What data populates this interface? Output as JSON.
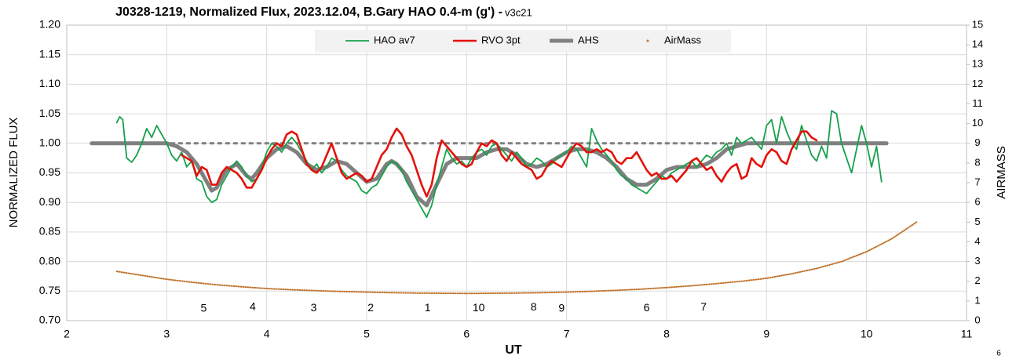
{
  "chart_data": {
    "type": "line",
    "title": "J0328-1219, Normalized Flux, 2023.12.04, B.Gary HAO 0.4-m (g') - ",
    "subtitle": "v3c21",
    "x_label": "UT",
    "y_label": "NORMALIZED FLUX",
    "y2_label": "AIRMASS",
    "page_note": "6",
    "grid": true,
    "xlim": [
      2,
      11
    ],
    "xticks": [
      2,
      3,
      4,
      5,
      6,
      7,
      8,
      9,
      10,
      11
    ],
    "ylim": [
      0.7,
      1.2
    ],
    "yticks": [
      {
        "value": 0.7,
        "label": "0.70"
      },
      0.75,
      {
        "value": 0.8,
        "label": "0.80"
      },
      0.85,
      {
        "value": 0.9,
        "label": "0.90"
      },
      0.95,
      {
        "value": 1.0,
        "label": "1.00"
      },
      1.05,
      {
        "value": 1.1,
        "label": "1.10"
      },
      1.15,
      {
        "value": 1.2,
        "label": "1.20"
      }
    ],
    "y2lim": [
      0,
      15
    ],
    "y2ticks": [
      0,
      1,
      2,
      3,
      4,
      5,
      6,
      7,
      8,
      9,
      10,
      11,
      12,
      13,
      14,
      15
    ],
    "reference_line": {
      "x": [
        2.25,
        10.2
      ],
      "y": 1.0,
      "color": "#808080",
      "dashed": true
    },
    "series": [
      {
        "name": "HAO av7",
        "color": "#16a04a",
        "line_width": 1.8,
        "x": [
          2.5,
          2.53,
          2.56,
          2.6,
          2.65,
          2.7,
          2.75,
          2.8,
          2.85,
          2.9,
          2.95,
          3.0,
          3.05,
          3.1,
          3.15,
          3.2,
          3.25,
          3.3,
          3.35,
          3.4,
          3.45,
          3.5,
          3.55,
          3.6,
          3.65,
          3.7,
          3.75,
          3.8,
          3.85,
          3.9,
          3.95,
          4.0,
          4.05,
          4.1,
          4.15,
          4.2,
          4.25,
          4.3,
          4.35,
          4.4,
          4.45,
          4.5,
          4.55,
          4.6,
          4.65,
          4.7,
          4.75,
          4.8,
          4.85,
          4.9,
          4.95,
          5.0,
          5.05,
          5.1,
          5.15,
          5.2,
          5.25,
          5.3,
          5.35,
          5.4,
          5.45,
          5.5,
          5.55,
          5.6,
          5.65,
          5.7,
          5.75,
          5.8,
          5.85,
          5.9,
          5.95,
          6.0,
          6.05,
          6.1,
          6.15,
          6.2,
          6.25,
          6.3,
          6.35,
          6.4,
          6.45,
          6.5,
          6.55,
          6.6,
          6.65,
          6.7,
          6.75,
          6.8,
          6.85,
          6.9,
          6.95,
          7.0,
          7.05,
          7.1,
          7.15,
          7.2,
          7.25,
          7.3,
          7.35,
          7.4,
          7.45,
          7.5,
          7.55,
          7.6,
          7.65,
          7.7,
          7.75,
          7.8,
          7.85,
          7.9,
          7.95,
          8.0,
          8.05,
          8.1,
          8.15,
          8.2,
          8.25,
          8.3,
          8.35,
          8.4,
          8.45,
          8.5,
          8.55,
          8.6,
          8.65,
          8.7,
          8.75,
          8.8,
          8.85,
          8.9,
          8.95,
          9.0,
          9.05,
          9.1,
          9.15,
          9.2,
          9.25,
          9.3,
          9.35,
          9.4,
          9.45,
          9.5,
          9.55,
          9.6,
          9.65,
          9.7,
          9.75,
          9.8,
          9.85,
          9.9,
          9.95,
          10.0,
          10.05,
          10.1,
          10.15
        ],
        "values": [
          1.035,
          1.045,
          1.04,
          0.975,
          0.968,
          0.98,
          1.0,
          1.025,
          1.01,
          1.03,
          1.015,
          1.0,
          0.98,
          0.97,
          0.985,
          0.96,
          0.97,
          0.94,
          0.935,
          0.91,
          0.9,
          0.905,
          0.93,
          0.945,
          0.96,
          0.97,
          0.96,
          0.945,
          0.935,
          0.94,
          0.96,
          0.985,
          1.0,
          0.995,
          0.985,
          1.0,
          1.01,
          1.0,
          0.985,
          0.97,
          0.955,
          0.965,
          0.95,
          0.96,
          0.975,
          0.97,
          0.955,
          0.945,
          0.94,
          0.935,
          0.92,
          0.915,
          0.925,
          0.93,
          0.945,
          0.96,
          0.97,
          0.965,
          0.955,
          0.935,
          0.92,
          0.905,
          0.89,
          0.875,
          0.895,
          0.93,
          0.96,
          0.99,
          0.975,
          0.965,
          0.97,
          0.96,
          0.975,
          0.985,
          0.99,
          0.98,
          0.995,
          1.0,
          0.99,
          0.98,
          0.97,
          0.985,
          0.975,
          0.96,
          0.965,
          0.975,
          0.97,
          0.96,
          0.965,
          0.975,
          0.98,
          0.985,
          0.995,
          0.99,
          0.975,
          0.96,
          1.025,
          1.005,
          0.99,
          0.98,
          0.97,
          0.955,
          0.945,
          0.94,
          0.93,
          0.925,
          0.92,
          0.915,
          0.925,
          0.935,
          0.945,
          0.94,
          0.95,
          0.955,
          0.96,
          0.965,
          0.97,
          0.96,
          0.97,
          0.98,
          0.975,
          0.985,
          0.99,
          1.0,
          0.98,
          1.01,
          1.0,
          1.005,
          1.01,
          1.0,
          0.99,
          1.03,
          1.04,
          1.0,
          1.045,
          1.02,
          1.0,
          0.99,
          1.03,
          1.005,
          0.98,
          0.97,
          0.995,
          0.975,
          1.055,
          1.05,
          1.0,
          0.975,
          0.95,
          0.99,
          1.03,
          1.0,
          0.96,
          0.995,
          0.935
        ]
      },
      {
        "name": "RVO 3pt",
        "color": "#e3120b",
        "line_width": 2.6,
        "x": [
          3.15,
          3.2,
          3.25,
          3.3,
          3.35,
          3.4,
          3.45,
          3.5,
          3.55,
          3.6,
          3.65,
          3.7,
          3.75,
          3.8,
          3.85,
          3.9,
          3.95,
          4.0,
          4.05,
          4.1,
          4.15,
          4.2,
          4.25,
          4.3,
          4.35,
          4.4,
          4.45,
          4.5,
          4.55,
          4.6,
          4.65,
          4.7,
          4.75,
          4.8,
          4.85,
          4.9,
          4.95,
          5.0,
          5.05,
          5.1,
          5.15,
          5.2,
          5.25,
          5.3,
          5.35,
          5.4,
          5.45,
          5.5,
          5.55,
          5.6,
          5.65,
          5.7,
          5.75,
          5.8,
          5.85,
          5.9,
          5.95,
          6.0,
          6.05,
          6.1,
          6.15,
          6.2,
          6.25,
          6.3,
          6.35,
          6.4,
          6.45,
          6.5,
          6.55,
          6.6,
          6.65,
          6.7,
          6.75,
          6.8,
          6.85,
          6.9,
          6.95,
          7.0,
          7.05,
          7.1,
          7.15,
          7.2,
          7.25,
          7.3,
          7.35,
          7.4,
          7.45,
          7.5,
          7.55,
          7.6,
          7.65,
          7.7,
          7.75,
          7.8,
          7.85,
          7.9,
          7.95,
          8.0,
          8.05,
          8.1,
          8.15,
          8.2,
          8.25,
          8.3,
          8.35,
          8.4,
          8.45,
          8.5,
          8.55,
          8.6,
          8.65,
          8.7,
          8.75,
          8.8,
          8.85,
          8.9,
          8.95,
          9.0,
          9.05,
          9.1,
          9.15,
          9.2,
          9.25,
          9.3,
          9.35,
          9.4,
          9.45,
          9.5
        ],
        "values": [
          0.98,
          0.975,
          0.97,
          0.945,
          0.96,
          0.955,
          0.93,
          0.93,
          0.95,
          0.96,
          0.955,
          0.95,
          0.94,
          0.925,
          0.925,
          0.94,
          0.955,
          0.975,
          0.99,
          1.0,
          0.995,
          1.015,
          1.02,
          1.015,
          0.99,
          0.965,
          0.955,
          0.95,
          0.96,
          0.98,
          1.0,
          0.975,
          0.95,
          0.94,
          0.945,
          0.95,
          0.945,
          0.935,
          0.94,
          0.96,
          0.98,
          0.99,
          1.01,
          1.025,
          1.015,
          0.995,
          0.98,
          0.955,
          0.93,
          0.91,
          0.93,
          0.975,
          1.005,
          0.995,
          0.985,
          0.975,
          0.965,
          0.96,
          0.965,
          0.985,
          1.0,
          0.995,
          1.005,
          1.0,
          0.98,
          0.97,
          0.985,
          0.975,
          0.965,
          0.96,
          0.955,
          0.94,
          0.945,
          0.96,
          0.97,
          0.965,
          0.96,
          0.975,
          0.99,
          1.0,
          0.995,
          0.985,
          0.985,
          0.99,
          0.985,
          0.99,
          0.985,
          0.97,
          0.965,
          0.975,
          0.975,
          0.985,
          0.97,
          0.955,
          0.945,
          0.95,
          0.94,
          0.94,
          0.945,
          0.935,
          0.945,
          0.955,
          0.97,
          0.975,
          0.965,
          0.955,
          0.96,
          0.945,
          0.935,
          0.95,
          0.96,
          0.965,
          0.94,
          0.945,
          0.975,
          0.965,
          0.96,
          0.98,
          0.99,
          0.985,
          0.97,
          0.965,
          0.99,
          1.005,
          1.02,
          1.02,
          1.01,
          1.005
        ]
      },
      {
        "name": "AHS",
        "color": "#808080",
        "line_width": 5,
        "x": [
          2.25,
          3.0,
          3.1,
          3.2,
          3.3,
          3.4,
          3.45,
          3.5,
          3.6,
          3.7,
          3.8,
          3.85,
          3.9,
          4.0,
          4.1,
          4.2,
          4.3,
          4.4,
          4.5,
          4.6,
          4.7,
          4.8,
          4.9,
          5.0,
          5.1,
          5.2,
          5.25,
          5.3,
          5.4,
          5.5,
          5.6,
          5.7,
          5.8,
          5.9,
          6.0,
          6.1,
          6.2,
          6.3,
          6.4,
          6.5,
          6.6,
          6.7,
          6.8,
          6.9,
          7.0,
          7.1,
          7.2,
          7.3,
          7.4,
          7.5,
          7.6,
          7.7,
          7.8,
          7.9,
          8.0,
          8.1,
          8.2,
          8.3,
          8.4,
          8.5,
          8.6,
          8.7,
          8.8,
          9.0,
          10.2
        ],
        "values": [
          1.0,
          1.0,
          0.995,
          0.985,
          0.965,
          0.935,
          0.92,
          0.925,
          0.955,
          0.965,
          0.945,
          0.94,
          0.95,
          0.975,
          0.99,
          0.995,
          0.985,
          0.965,
          0.955,
          0.96,
          0.97,
          0.965,
          0.95,
          0.935,
          0.94,
          0.965,
          0.97,
          0.965,
          0.945,
          0.91,
          0.895,
          0.93,
          0.965,
          0.975,
          0.975,
          0.975,
          0.985,
          0.99,
          0.99,
          0.98,
          0.965,
          0.96,
          0.965,
          0.975,
          0.985,
          0.99,
          0.99,
          0.985,
          0.975,
          0.96,
          0.94,
          0.93,
          0.93,
          0.94,
          0.955,
          0.96,
          0.96,
          0.96,
          0.965,
          0.975,
          0.99,
          0.995,
          1.0,
          1.0,
          1.0
        ]
      },
      {
        "name": "AirMass",
        "color": "#c0722a",
        "axis": "y2",
        "markers": "dots",
        "x": [
          2.5,
          2.75,
          3.0,
          3.25,
          3.5,
          3.75,
          4.0,
          4.25,
          4.5,
          4.75,
          5.0,
          5.25,
          5.5,
          5.75,
          6.0,
          6.25,
          6.5,
          6.75,
          7.0,
          7.25,
          7.5,
          7.75,
          8.0,
          8.25,
          8.5,
          8.75,
          9.0,
          9.25,
          9.5,
          9.75,
          10.0,
          10.25,
          10.5
        ],
        "values": [
          2.5,
          2.3,
          2.1,
          1.95,
          1.82,
          1.72,
          1.63,
          1.57,
          1.52,
          1.48,
          1.45,
          1.42,
          1.4,
          1.39,
          1.38,
          1.39,
          1.4,
          1.42,
          1.45,
          1.49,
          1.54,
          1.6,
          1.68,
          1.77,
          1.88,
          2.0,
          2.15,
          2.38,
          2.65,
          3.0,
          3.5,
          4.15,
          5.0
        ]
      }
    ],
    "annotations": [
      {
        "text": "5",
        "x": 3.37,
        "y": 0.72
      },
      {
        "text": "4",
        "x": 3.86,
        "y": 0.723
      },
      {
        "text": "3",
        "x": 4.47,
        "y": 0.721
      },
      {
        "text": "2",
        "x": 5.04,
        "y": 0.721
      },
      {
        "text": "1",
        "x": 5.61,
        "y": 0.721
      },
      {
        "text": "10",
        "x": 6.12,
        "y": 0.721
      },
      {
        "text": "8",
        "x": 6.67,
        "y": 0.722
      },
      {
        "text": "9",
        "x": 6.95,
        "y": 0.72
      },
      {
        "text": "6",
        "x": 7.8,
        "y": 0.721
      },
      {
        "text": "7",
        "x": 8.37,
        "y": 0.722
      }
    ]
  }
}
